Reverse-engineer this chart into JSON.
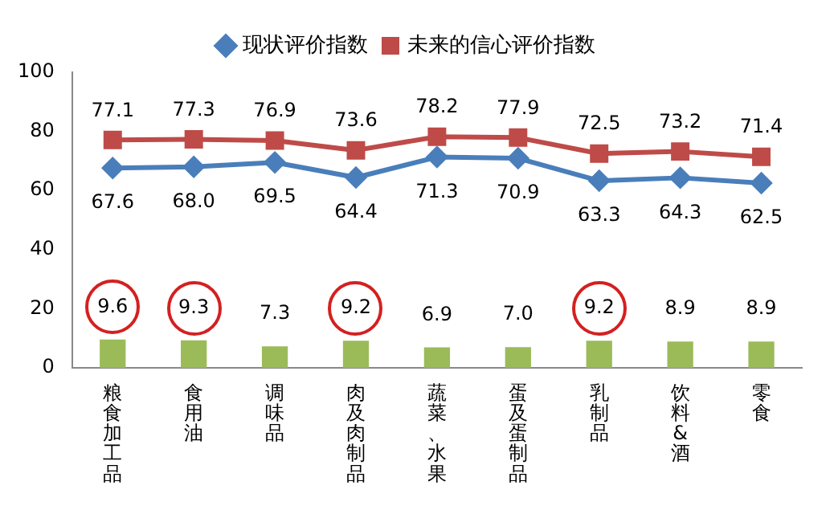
{
  "chart_data": {
    "type": "line",
    "categories": [
      "粮食加工品",
      "食用油",
      "调味品",
      "肉及肉制品",
      "蔬菜、水果",
      "蛋及蛋制品",
      "乳制品",
      "饮料&酒",
      "零食"
    ],
    "series": [
      {
        "name": "现状评价指数",
        "color": "#4a7ebb",
        "marker": "diamond",
        "values": [
          67.6,
          68.0,
          69.5,
          64.4,
          71.3,
          70.9,
          63.3,
          64.3,
          62.5
        ],
        "value_labels": [
          "67.6",
          "68.0",
          "69.5",
          "64.4",
          "71.3",
          "70.9",
          "63.3",
          "64.3",
          "62.5"
        ]
      },
      {
        "name": "未来的信心评价指数",
        "color": "#be4b48",
        "marker": "square",
        "values": [
          77.1,
          77.3,
          76.9,
          73.6,
          78.2,
          77.9,
          72.5,
          73.2,
          71.4
        ],
        "value_labels": [
          "77.1",
          "77.3",
          "76.9",
          "73.6",
          "78.2",
          "77.9",
          "72.5",
          "73.2",
          "71.4"
        ]
      },
      {
        "type": "bar",
        "color": "#9bbb59",
        "values": [
          9.6,
          9.3,
          7.3,
          9.2,
          6.9,
          7.0,
          9.2,
          8.9,
          8.9
        ],
        "value_labels": [
          "9.6",
          "9.3",
          "7.3",
          "9.2",
          "6.9",
          "7.0",
          "9.2",
          "8.9",
          "8.9"
        ]
      }
    ],
    "ylim": [
      0,
      100
    ],
    "yticks": [
      0,
      20,
      40,
      60,
      80,
      100
    ],
    "grid": false,
    "legend": "top"
  }
}
